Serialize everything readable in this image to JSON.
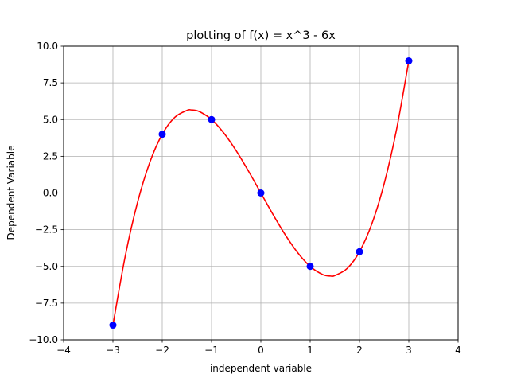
{
  "chart_data": {
    "type": "line",
    "title": "plotting of f(x) = x^3 - 6x",
    "xlabel": "independent variable",
    "ylabel": "Dependent Variable",
    "xlim": [
      -4,
      4
    ],
    "ylim": [
      -10,
      10
    ],
    "xticks": [
      -4,
      -3,
      -2,
      -1,
      0,
      1,
      2,
      3,
      4
    ],
    "xtick_labels": [
      "−4",
      "−3",
      "−2",
      "−1",
      "0",
      "1",
      "2",
      "3",
      "4"
    ],
    "yticks": [
      -10,
      -7.5,
      -5,
      -2.5,
      0,
      2.5,
      5,
      7.5,
      10
    ],
    "ytick_labels": [
      "−10.0",
      "−7.5",
      "−5.0",
      "−2.5",
      "0.0",
      "2.5",
      "5.0",
      "7.5",
      "10.0"
    ],
    "grid": true,
    "series": [
      {
        "kind": "line",
        "color": "#ff0000",
        "x": [
          -3,
          -2.75,
          -2.5,
          -2.25,
          -2,
          -1.75,
          -1.5,
          -1.414,
          -1.25,
          -1,
          -0.75,
          -0.5,
          -0.25,
          0,
          0.25,
          0.5,
          0.75,
          1,
          1.25,
          1.414,
          1.5,
          1.75,
          2,
          2.25,
          2.5,
          2.75,
          3
        ],
        "y": [
          -9,
          -4.297,
          -0.625,
          2.109,
          4,
          5.141,
          5.625,
          5.657,
          5.547,
          5,
          4.078,
          2.875,
          1.484,
          0,
          -1.484,
          -2.875,
          -4.078,
          -5,
          -5.547,
          -5.657,
          -5.625,
          -5.141,
          -4,
          -2.109,
          0.625,
          4.297,
          9
        ]
      },
      {
        "kind": "scatter",
        "color": "#0000ff",
        "x": [
          -3,
          -2,
          -1,
          0,
          1,
          2,
          3
        ],
        "y": [
          -9,
          4,
          5,
          0,
          -5,
          -4,
          9
        ]
      }
    ]
  }
}
